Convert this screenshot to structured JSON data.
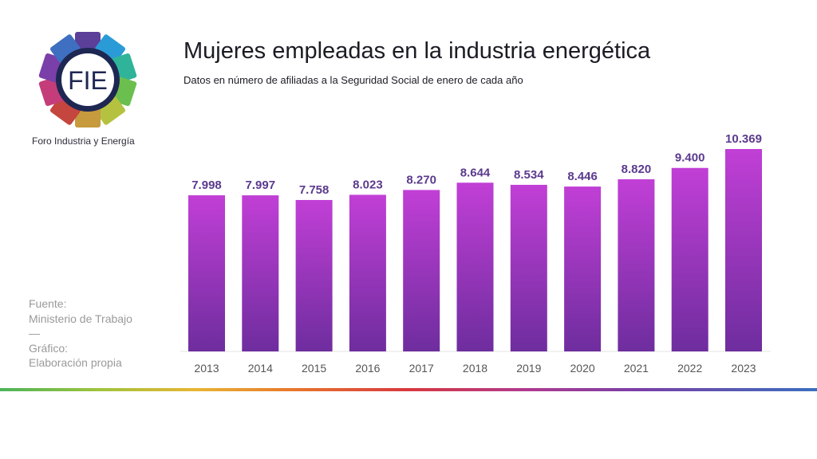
{
  "logo": {
    "text": "FIE",
    "caption": "Foro Industria y Energía",
    "segment_colors": [
      "#5b3f98",
      "#2a9bd6",
      "#2fb49a",
      "#6bbf4e",
      "#b5c240",
      "#c79a3d",
      "#c4463f",
      "#c43d7a",
      "#7a3fa8",
      "#3e6fc0"
    ]
  },
  "header": {
    "title": "Mujeres empleadas en la industria energética",
    "subtitle": "Datos en número de afiliadas a la Seguridad Social de enero de cada año"
  },
  "source": {
    "line1": "Fuente:",
    "line2": "Ministerio de Trabajo",
    "line3": "—",
    "line4": "Gráfico:",
    "line5": "Elaboración propia"
  },
  "chart_data": {
    "type": "bar",
    "title": "Mujeres empleadas en la industria energética",
    "subtitle": "Datos en número de afiliadas a la Seguridad Social de enero de cada año",
    "categories": [
      "2013",
      "2014",
      "2015",
      "2016",
      "2017",
      "2018",
      "2019",
      "2020",
      "2021",
      "2022",
      "2023"
    ],
    "values": [
      7998,
      7997,
      7758,
      8023,
      8270,
      8644,
      8534,
      8446,
      8820,
      9400,
      10369
    ],
    "value_labels": [
      "7.998",
      "7.997",
      "7.758",
      "8.023",
      "8.270",
      "8.644",
      "8.534",
      "8.446",
      "8.820",
      "9.400",
      "10.369"
    ],
    "xlabel": "",
    "ylabel": "",
    "ylim": [
      0,
      10369
    ],
    "grid": false,
    "bar_gradient": [
      "#c13fd6",
      "#6e2d9e"
    ],
    "label_color": "#5b3a8e"
  }
}
